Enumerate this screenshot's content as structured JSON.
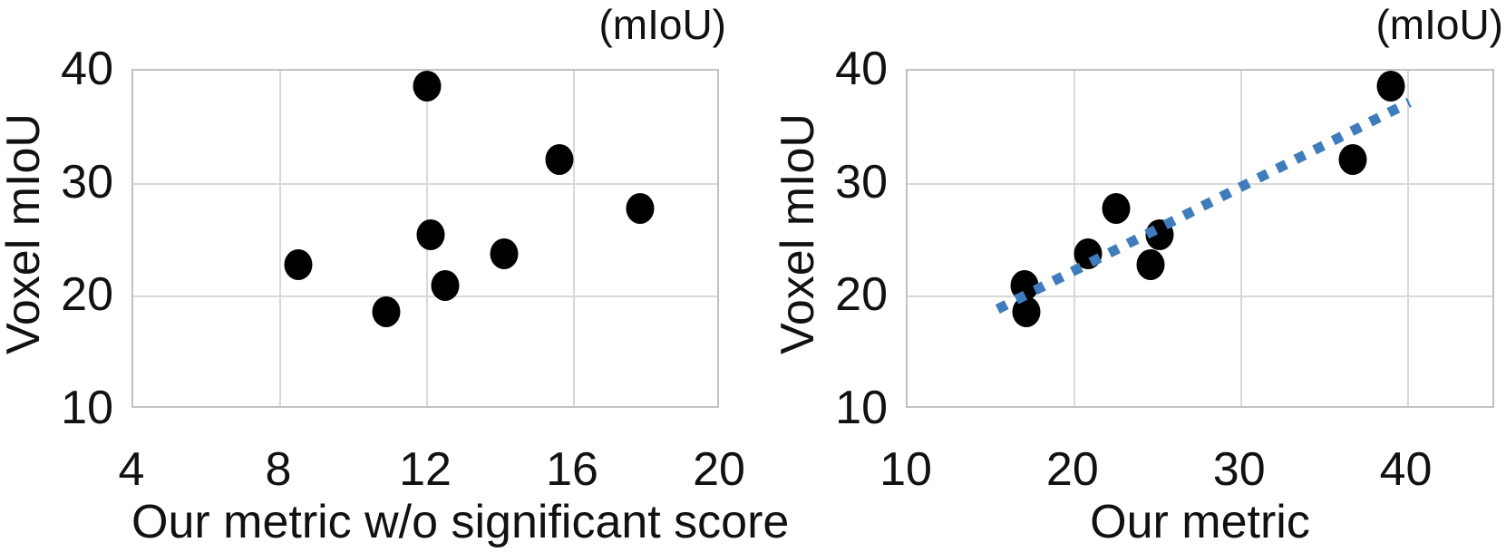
{
  "colors": {
    "marker": "#000000",
    "trend_line": "#3E7CBB",
    "gridline": "#D9D9D9",
    "plot_border": "#C2C2C2",
    "text": "#111111",
    "background": "#FFFFFF"
  },
  "chart_data": [
    {
      "type": "scatter",
      "unit_label": "(mIoU)",
      "xlabel": "Our metric w/o significant score",
      "ylabel": "Voxel mIoU",
      "xlim": [
        4,
        20
      ],
      "ylim": [
        10,
        40
      ],
      "xticks": [
        4,
        8,
        12,
        16,
        20
      ],
      "yticks": [
        10,
        20,
        30,
        40
      ],
      "grid": true,
      "legend_position": "none",
      "points": [
        [
          12.0,
          38.6
        ],
        [
          15.6,
          32.1
        ],
        [
          17.8,
          27.8
        ],
        [
          12.1,
          25.5
        ],
        [
          14.1,
          23.8
        ],
        [
          8.5,
          22.8
        ],
        [
          12.5,
          21.0
        ],
        [
          10.9,
          18.7
        ]
      ]
    },
    {
      "type": "scatter",
      "unit_label": "(mIoU)",
      "xlabel": "Our metric",
      "ylabel": "Voxel mIoU",
      "xlim": [
        10,
        45.3
      ],
      "ylim": [
        10,
        40
      ],
      "xticks": [
        10,
        20,
        30,
        40
      ],
      "yticks": [
        10,
        20,
        30,
        40
      ],
      "grid": true,
      "legend_position": "none",
      "points": [
        [
          39.0,
          38.6
        ],
        [
          36.7,
          32.1
        ],
        [
          22.5,
          27.8
        ],
        [
          25.1,
          25.5
        ],
        [
          20.8,
          23.8
        ],
        [
          24.6,
          22.8
        ],
        [
          17.0,
          21.0
        ],
        [
          17.1,
          18.7
        ]
      ],
      "trendline": {
        "x1": 15.4,
        "y1": 18.9,
        "x2": 40.1,
        "y2": 37.2,
        "style": "dashed",
        "color": "#3E7CBB"
      }
    }
  ]
}
